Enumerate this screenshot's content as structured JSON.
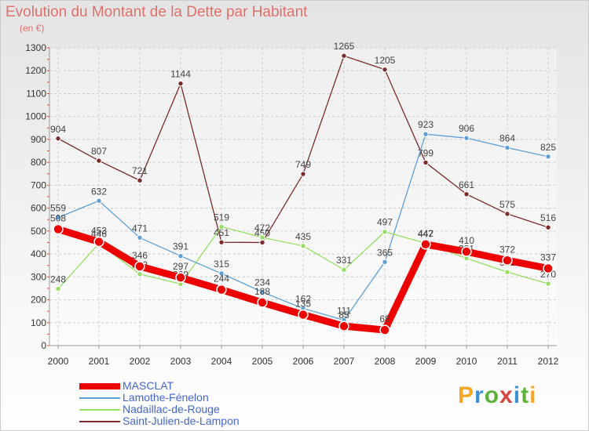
{
  "chart_data": {
    "type": "line",
    "title": "Evolution du Montant de la Dette par Habitant",
    "subtitle": "(en €)",
    "categories": [
      "2000",
      "2001",
      "2002",
      "2003",
      "2004",
      "2005",
      "2006",
      "2007",
      "2008",
      "2009",
      "2010",
      "2011",
      "2012"
    ],
    "ylim": [
      0,
      1300
    ],
    "yticks": [
      0,
      100,
      200,
      300,
      400,
      500,
      600,
      700,
      800,
      900,
      1000,
      1100,
      1200,
      1300
    ],
    "grid": true,
    "legend_position": "bottom-left",
    "series": [
      {
        "name": "MASCLAT",
        "color": "#ee0000",
        "values": [
          508,
          453,
          346,
          297,
          244,
          188,
          135,
          85,
          68,
          442,
          410,
          372,
          337
        ]
      },
      {
        "name": "Lamothe-Fénelon",
        "color": "#5e9fd6",
        "values": [
          559,
          632,
          471,
          391,
          315,
          234,
          162,
          111,
          365,
          923,
          906,
          864,
          825
        ]
      },
      {
        "name": "Nadaillac-de-Rouge",
        "color": "#96de62",
        "values": [
          248,
          446,
          312,
          269,
          519,
          472,
          435,
          331,
          497,
          447,
          381,
          321,
          270
        ]
      },
      {
        "name": "Saint-Julien-de-Lampon",
        "color": "#7a2c2c",
        "values": [
          904,
          807,
          721,
          1144,
          451,
          450,
          749,
          1265,
          1205,
          799,
          661,
          575,
          516
        ]
      }
    ]
  },
  "logo": {
    "text": "Proxiti"
  }
}
